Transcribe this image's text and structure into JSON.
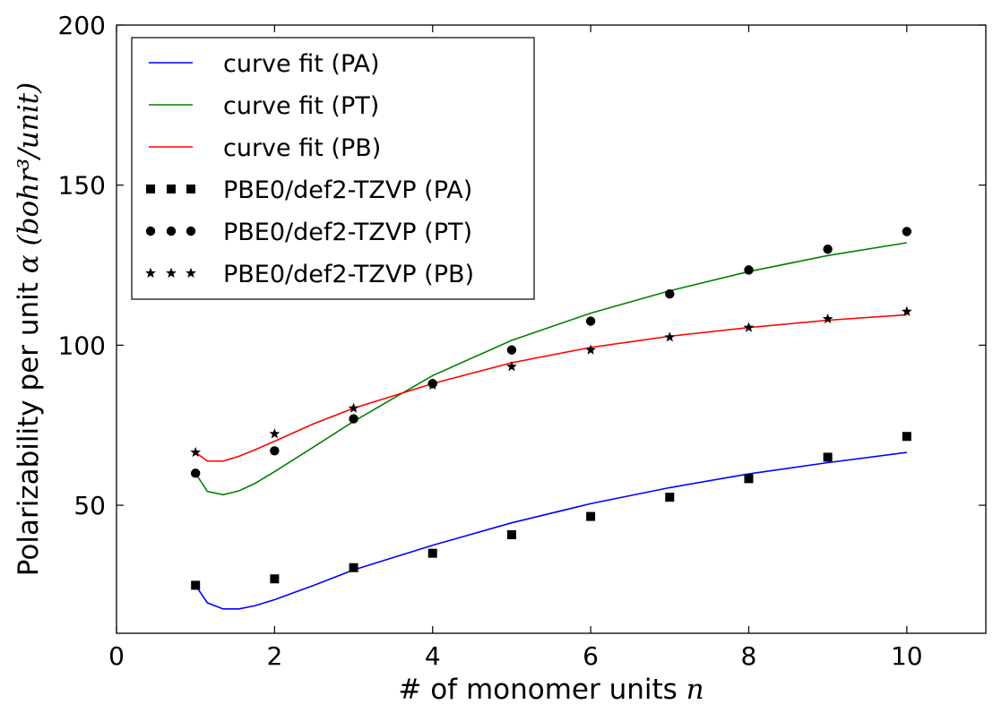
{
  "chart_data": {
    "type": "line",
    "xlabel_text": "# of monomer units ",
    "xlabel_math": "n",
    "ylabel_text": "Polarizability per unit ",
    "ylabel_math": "α (bohr³/unit)",
    "xlim": [
      0,
      11
    ],
    "ylim": [
      10,
      200
    ],
    "xticks": [
      0,
      2,
      4,
      6,
      8,
      10
    ],
    "yticks": [
      50,
      100,
      150,
      200
    ],
    "grid": false,
    "legend_position": "top-left",
    "series": [
      {
        "name": "curve fit (PA)",
        "kind": "line",
        "color": "#0000ff",
        "x": [
          1.0,
          1.15,
          1.35,
          1.55,
          1.75,
          2.0,
          2.5,
          3.0,
          4.0,
          5.0,
          6.0,
          7.0,
          8.0,
          9.0,
          10.0
        ],
        "y": [
          25.0,
          19.5,
          17.6,
          17.6,
          18.6,
          20.5,
          25.0,
          29.8,
          37.5,
          44.5,
          50.5,
          55.5,
          59.8,
          63.3,
          66.5
        ]
      },
      {
        "name": "curve fit (PT)",
        "kind": "line",
        "color": "#008000",
        "x": [
          1.0,
          1.15,
          1.35,
          1.55,
          1.75,
          2.0,
          2.5,
          3.0,
          4.0,
          5.0,
          6.0,
          7.0,
          8.0,
          9.0,
          10.0
        ],
        "y": [
          60.0,
          54.3,
          53.3,
          54.5,
          56.8,
          60.5,
          68.3,
          76.2,
          90.5,
          101.5,
          110.0,
          117.0,
          123.0,
          128.0,
          132.0
        ]
      },
      {
        "name": "curve fit (PB)",
        "kind": "line",
        "color": "#ff0000",
        "x": [
          1.0,
          1.15,
          1.35,
          1.55,
          1.75,
          2.0,
          2.5,
          3.0,
          4.0,
          5.0,
          6.0,
          7.0,
          8.0,
          9.0,
          10.0
        ],
        "y": [
          66.5,
          63.8,
          63.8,
          65.3,
          67.3,
          70.0,
          75.5,
          80.3,
          88.0,
          94.5,
          99.3,
          102.8,
          105.5,
          107.8,
          109.5
        ]
      },
      {
        "name": "PBE0/def2-TZVP (PA)",
        "kind": "marker",
        "marker": "square",
        "color": "#000000",
        "x": [
          1,
          2,
          3,
          4,
          5,
          6,
          7,
          8,
          9,
          10
        ],
        "y": [
          25.0,
          27.0,
          30.5,
          35.0,
          40.8,
          46.5,
          52.5,
          58.3,
          65.0,
          71.5
        ]
      },
      {
        "name": "PBE0/def2-TZVP (PT)",
        "kind": "marker",
        "marker": "circle",
        "color": "#000000",
        "x": [
          1,
          2,
          3,
          4,
          5,
          6,
          7,
          8,
          9,
          10
        ],
        "y": [
          60.0,
          67.0,
          77.0,
          88.0,
          98.5,
          107.5,
          116.0,
          123.5,
          130.0,
          135.5
        ]
      },
      {
        "name": "PBE0/def2-TZVP (PB)",
        "kind": "marker",
        "marker": "star",
        "color": "#000000",
        "x": [
          1,
          2,
          3,
          4,
          5,
          6,
          7,
          8,
          9,
          10
        ],
        "y": [
          66.5,
          72.3,
          80.3,
          87.5,
          93.3,
          98.5,
          102.5,
          105.5,
          108.2,
          110.5
        ]
      }
    ]
  }
}
